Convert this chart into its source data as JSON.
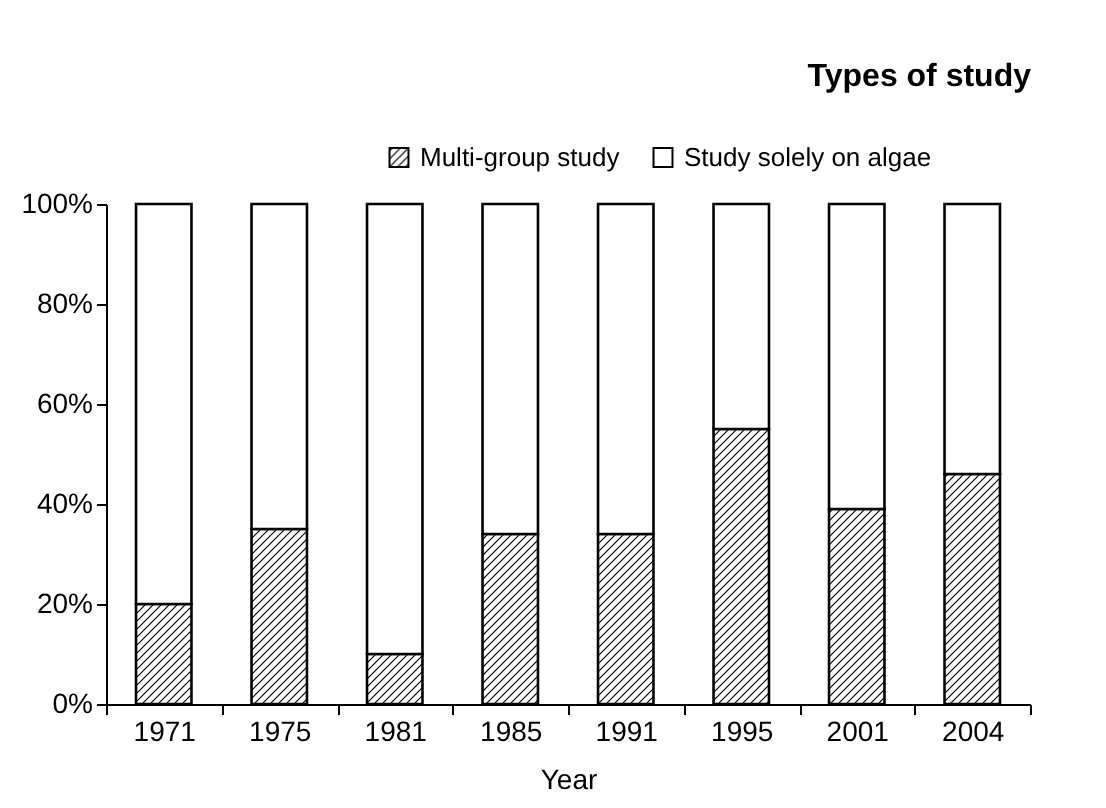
{
  "chart_data": {
    "type": "bar",
    "title": "Types of study",
    "xlabel": "Year",
    "stacked": true,
    "legend": "top",
    "grid": false,
    "categories": [
      "1971",
      "1975",
      "1981",
      "1985",
      "1991",
      "1995",
      "2001",
      "2004"
    ],
    "series": [
      {
        "name": "Multi-group study",
        "color": "#000000",
        "values": [
          20,
          35,
          10,
          34,
          34,
          55,
          39,
          46
        ]
      },
      {
        "name": "Study solely on algae",
        "color": "#ffffff",
        "values": [
          80,
          65,
          90,
          66,
          66,
          45,
          61,
          54
        ]
      }
    ],
    "ylim": [
      0,
      100
    ],
    "yticks": [
      {
        "value": 0,
        "label": "0%"
      },
      {
        "value": 20,
        "label": "20%"
      },
      {
        "value": 40,
        "label": "40%"
      },
      {
        "value": 60,
        "label": "60%"
      },
      {
        "value": 80,
        "label": "80%"
      },
      {
        "value": 100,
        "label": "100%"
      }
    ]
  }
}
